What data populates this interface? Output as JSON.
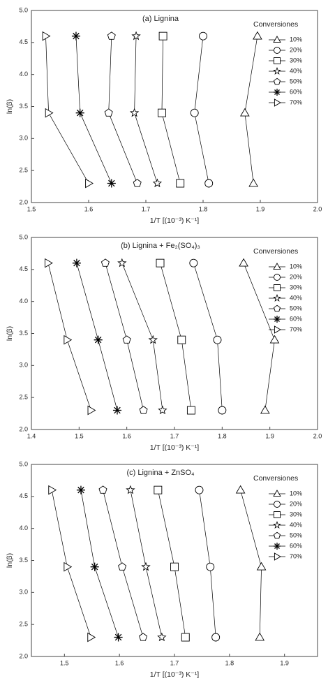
{
  "chart_data": [
    {
      "type": "line",
      "title": "(a) Lignina",
      "xlabel": "1/T  [(10⁻³) K⁻¹]",
      "ylabel": "ln(β)",
      "legend_title": "Conversiones",
      "legend": "upper right",
      "xlim": [
        1.5,
        2.0
      ],
      "xticks": [
        1.5,
        1.6,
        1.7,
        1.8,
        1.9,
        {
          "value": 2.0,
          "label": "2.0"
        }
      ],
      "ylim": [
        2.0,
        5.0
      ],
      "yticks": [
        {
          "value": 2.0,
          "label": "2.0"
        },
        2.5,
        {
          "value": 3.0,
          "label": "3.0"
        },
        3.5,
        {
          "value": 4.0,
          "label": "4.0"
        },
        4.5,
        {
          "value": 5.0,
          "label": "5.0"
        }
      ],
      "series": [
        {
          "name": "10%",
          "marker": "triangle",
          "color": "#000000",
          "x": [
            1.895,
            1.873,
            1.888
          ],
          "values": [
            4.6,
            3.4,
            2.3
          ]
        },
        {
          "name": "20%",
          "marker": "circle",
          "color": "#000000",
          "x": [
            1.8,
            1.785,
            1.81
          ],
          "values": [
            4.6,
            3.4,
            2.3
          ]
        },
        {
          "name": "30%",
          "marker": "square",
          "color": "#000000",
          "x": [
            1.73,
            1.728,
            1.76
          ],
          "values": [
            4.6,
            3.4,
            2.3
          ]
        },
        {
          "name": "40%",
          "marker": "star",
          "color": "#000000",
          "x": [
            1.683,
            1.68,
            1.72
          ],
          "values": [
            4.6,
            3.4,
            2.3
          ]
        },
        {
          "name": "50%",
          "marker": "pentagon",
          "color": "#000000",
          "x": [
            1.64,
            1.635,
            1.685
          ],
          "values": [
            4.6,
            3.4,
            2.3
          ]
        },
        {
          "name": "60%",
          "marker": "asterisk",
          "color": "#000000",
          "x": [
            1.578,
            1.585,
            1.64
          ],
          "values": [
            4.6,
            3.4,
            2.3
          ]
        },
        {
          "name": "70%",
          "marker": "right-triangle",
          "color": "#000000",
          "x": [
            1.525,
            1.53,
            1.6
          ],
          "values": [
            4.6,
            3.4,
            2.3
          ]
        }
      ]
    },
    {
      "type": "line",
      "title": "(b) Lignina + Fe₂(SO₄)₃",
      "xlabel": "1/T  [(10⁻³) K⁻¹]",
      "ylabel": "ln(β)",
      "legend_title": "Conversiones",
      "legend": "upper right",
      "xlim": [
        1.4,
        2.0
      ],
      "xticks": [
        1.4,
        1.5,
        1.6,
        1.7,
        1.8,
        1.9,
        {
          "value": 2.0,
          "label": "2.0"
        }
      ],
      "ylim": [
        2.0,
        5.0
      ],
      "yticks": [
        {
          "value": 2.0,
          "label": "2.0"
        },
        2.5,
        {
          "value": 3.0,
          "label": "3.0"
        },
        3.5,
        {
          "value": 4.0,
          "label": "4.0"
        },
        4.5,
        {
          "value": 5.0,
          "label": "5.0"
        }
      ],
      "series": [
        {
          "name": "10%",
          "marker": "triangle",
          "color": "#000000",
          "x": [
            1.845,
            1.91,
            1.89
          ],
          "values": [
            4.6,
            3.4,
            2.3
          ]
        },
        {
          "name": "20%",
          "marker": "circle",
          "color": "#000000",
          "x": [
            1.74,
            1.79,
            1.8
          ],
          "values": [
            4.6,
            3.4,
            2.3
          ]
        },
        {
          "name": "30%",
          "marker": "square",
          "color": "#000000",
          "x": [
            1.67,
            1.715,
            1.735
          ],
          "values": [
            4.6,
            3.4,
            2.3
          ]
        },
        {
          "name": "40%",
          "marker": "star",
          "color": "#000000",
          "x": [
            1.59,
            1.655,
            1.675
          ],
          "values": [
            4.6,
            3.4,
            2.3
          ]
        },
        {
          "name": "50%",
          "marker": "pentagon",
          "color": "#000000",
          "x": [
            1.555,
            1.6,
            1.635
          ],
          "values": [
            4.6,
            3.4,
            2.3
          ]
        },
        {
          "name": "60%",
          "marker": "asterisk",
          "color": "#000000",
          "x": [
            1.495,
            1.54,
            1.58
          ],
          "values": [
            4.6,
            3.4,
            2.3
          ]
        },
        {
          "name": "70%",
          "marker": "right-triangle",
          "color": "#000000",
          "x": [
            1.435,
            1.475,
            1.525
          ],
          "values": [
            4.6,
            3.4,
            2.3
          ]
        }
      ]
    },
    {
      "type": "line",
      "title": "(c) Lignina + ZnSO₄",
      "xlabel": "1/T  [(10⁻³) K⁻¹]",
      "ylabel": "ln(β)",
      "legend_title": "Conversiones",
      "legend": "upper right",
      "xlim": [
        1.44,
        1.96
      ],
      "xticks": [
        1.5,
        1.6,
        1.7,
        1.8,
        1.9
      ],
      "ylim": [
        2.0,
        5.0
      ],
      "yticks": [
        {
          "value": 2.0,
          "label": "2.0"
        },
        2.5,
        {
          "value": 3.0,
          "label": "3.0"
        },
        3.5,
        {
          "value": 4.0,
          "label": "4.0"
        },
        4.5,
        {
          "value": 5.0,
          "label": "5.0"
        }
      ],
      "series": [
        {
          "name": "10%",
          "marker": "triangle",
          "color": "#000000",
          "x": [
            1.82,
            1.858,
            1.855
          ],
          "values": [
            4.6,
            3.4,
            2.3
          ]
        },
        {
          "name": "20%",
          "marker": "circle",
          "color": "#000000",
          "x": [
            1.745,
            1.765,
            1.775
          ],
          "values": [
            4.6,
            3.4,
            2.3
          ]
        },
        {
          "name": "30%",
          "marker": "square",
          "color": "#000000",
          "x": [
            1.67,
            1.7,
            1.72
          ],
          "values": [
            4.6,
            3.4,
            2.3
          ]
        },
        {
          "name": "40%",
          "marker": "star",
          "color": "#000000",
          "x": [
            1.62,
            1.648,
            1.677
          ],
          "values": [
            4.6,
            3.4,
            2.3
          ]
        },
        {
          "name": "50%",
          "marker": "pentagon",
          "color": "#000000",
          "x": [
            1.57,
            1.605,
            1.643
          ],
          "values": [
            4.6,
            3.4,
            2.3
          ]
        },
        {
          "name": "60%",
          "marker": "asterisk",
          "color": "#000000",
          "x": [
            1.53,
            1.555,
            1.598
          ],
          "values": [
            4.6,
            3.4,
            2.3
          ]
        },
        {
          "name": "70%",
          "marker": "right-triangle",
          "color": "#000000",
          "x": [
            1.477,
            1.505,
            1.548
          ],
          "values": [
            4.6,
            3.4,
            2.3
          ]
        }
      ]
    }
  ]
}
